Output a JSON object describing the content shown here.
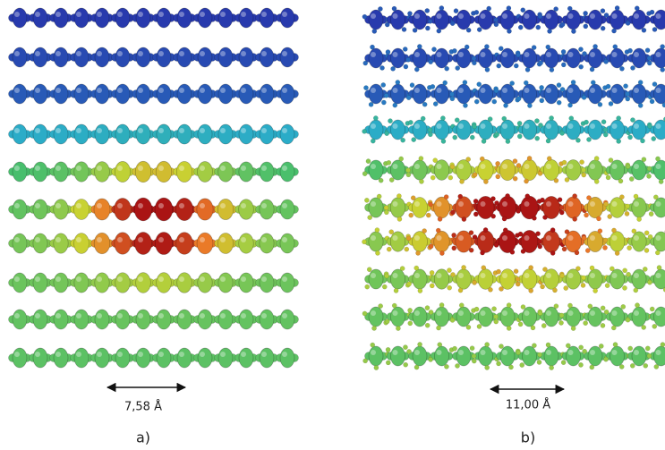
{
  "panels": [
    {
      "label": "a)",
      "scale": "7,58 Å"
    },
    {
      "label": "b)",
      "scale": "11,00 Å"
    }
  ]
}
